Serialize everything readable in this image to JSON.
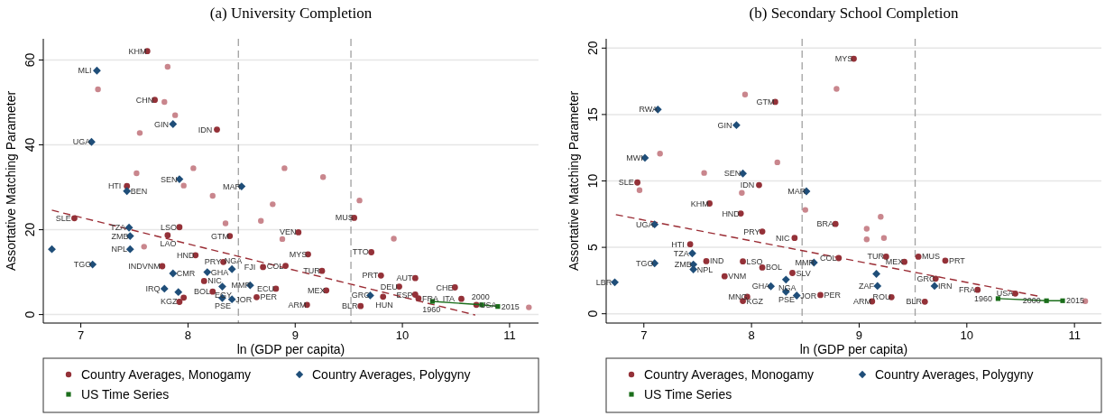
{
  "chart_data": [
    {
      "type": "scatter",
      "title": "(a) University Completion",
      "xlabel": "ln (GDP per capita)",
      "ylabel": "Assortative Matching Parameter",
      "xlim": [
        6.65,
        11.27
      ],
      "ylim": [
        -2,
        65
      ],
      "xticks": [
        7,
        8,
        9,
        10,
        11
      ],
      "yticks": [
        0,
        20,
        40,
        60
      ],
      "grid": "y",
      "legend": "bottom",
      "ref_lines": [
        {
          "axis": "x",
          "value": 8.47,
          "color": "#a0a0a0",
          "line_style": "dashed"
        },
        {
          "axis": "x",
          "value": 9.52,
          "color": "#a0a0a0",
          "line_style": "dashed"
        }
      ],
      "series": [
        {
          "type": "scatter",
          "color": "#c9868d",
          "marker": "circle",
          "x": [
            7.81,
            7.16,
            7.78,
            7.88,
            7.55,
            8.05,
            8.9,
            7.52,
            7.96,
            8.23,
            8.79,
            8.68,
            8.35,
            7.59,
            8.88,
            9.26,
            9.6,
            9.92,
            11.18
          ],
          "values": [
            58.4,
            53.1,
            50.1,
            47.0,
            42.8,
            34.5,
            34.5,
            33.3,
            30.4,
            28.0,
            26.0,
            22.1,
            21.5,
            16.0,
            17.8,
            32.4,
            26.9,
            17.9,
            1.7
          ]
        },
        {
          "type": "line",
          "color": "#9b2d35",
          "line_style": "dashed",
          "marker": "none",
          "x": [
            6.73,
            10.68
          ],
          "values": [
            24.6,
            -0.1
          ]
        },
        {
          "name": "Country Averages, Monogamy",
          "color": "#943138",
          "marker": "circle",
          "x": [
            7.62,
            7.69,
            8.27,
            7.43,
            6.94,
            7.92,
            7.81,
            8.39,
            9.03,
            8.07,
            9.12,
            8.33,
            7.76,
            8.91,
            8.7,
            8.15,
            8.23,
            8.82,
            8.64,
            7.92,
            7.96,
            9.11,
            9.55,
            9.71,
            9.8,
            10.12,
            9.97,
            10.49,
            10.12,
            10.15,
            9.82,
            9.61,
            10.55,
            10.69,
            9.29,
            9.25
          ],
          "values": [
            62.1,
            50.6,
            43.6,
            30.3,
            22.7,
            20.6,
            18.7,
            18.5,
            19.4,
            14.0,
            14.2,
            12.4,
            11.4,
            11.5,
            11.2,
            7.9,
            5.4,
            6.1,
            4.1,
            3.0,
            4.0,
            2.3,
            22.8,
            14.7,
            9.2,
            8.6,
            6.6,
            6.4,
            4.7,
            3.8,
            4.2,
            2.0,
            3.7,
            2.3,
            5.7,
            10.3
          ]
        },
        {
          "name": "Country Averages, Polygyny",
          "color": "#1f4e79",
          "marker": "diamond",
          "x": [
            7.15,
            7.86,
            7.1,
            7.92,
            7.43,
            8.5,
            7.45,
            7.46,
            7.46,
            6.73,
            7.11,
            7.86,
            8.18,
            8.41,
            8.58,
            7.78,
            7.91,
            8.32,
            8.41,
            8.32,
            9.7
          ],
          "values": [
            57.5,
            44.9,
            40.7,
            31.9,
            29.1,
            30.2,
            20.5,
            18.5,
            15.4,
            15.4,
            11.8,
            9.7,
            10.0,
            10.7,
            6.9,
            6.1,
            5.3,
            3.9,
            3.6,
            6.6,
            4.5
          ]
        },
        {
          "type": "line",
          "name": "US Time Series",
          "color": "#1b6e1b",
          "marker": "square",
          "x": [
            10.28,
            10.74,
            10.89
          ],
          "values": [
            3.1,
            2.3,
            1.9
          ]
        }
      ],
      "annotations": [
        {
          "text": "KHM",
          "x": 7.62,
          "y": 62.1
        },
        {
          "text": "MLI",
          "x": 7.15,
          "y": 57.5
        },
        {
          "text": "CHN",
          "x": 7.69,
          "y": 50.6
        },
        {
          "text": "GIN",
          "x": 7.86,
          "y": 44.9
        },
        {
          "text": "IDN",
          "x": 8.27,
          "y": 43.6
        },
        {
          "text": "UGA",
          "x": 7.1,
          "y": 40.7
        },
        {
          "text": "SEN",
          "x": 7.92,
          "y": 31.9
        },
        {
          "text": "HTI",
          "x": 7.43,
          "y": 30.3
        },
        {
          "text": "BEN",
          "x": 7.43,
          "y": 29.1
        },
        {
          "text": "MAR",
          "x": 8.5,
          "y": 30.2
        },
        {
          "text": "SLE",
          "x": 6.94,
          "y": 22.7
        },
        {
          "text": "TZA",
          "x": 7.45,
          "y": 20.5
        },
        {
          "text": "LSO",
          "x": 7.92,
          "y": 20.6
        },
        {
          "text": "ZMB",
          "x": 7.46,
          "y": 18.5
        },
        {
          "text": "LAO",
          "x": 7.81,
          "y": 18.7
        },
        {
          "text": "GTM",
          "x": 8.39,
          "y": 18.5
        },
        {
          "text": "VEN",
          "x": 9.03,
          "y": 19.4
        },
        {
          "text": "NPL",
          "x": 7.46,
          "y": 15.4
        },
        {
          "text": "HND",
          "x": 8.07,
          "y": 14.0
        },
        {
          "text": "MYS",
          "x": 9.12,
          "y": 14.2
        },
        {
          "text": "TGO",
          "x": 7.11,
          "y": 11.8
        },
        {
          "text": "PRY",
          "x": 8.33,
          "y": 12.4
        },
        {
          "text": "INDVNM",
          "x": 7.76,
          "y": 11.4
        },
        {
          "text": "FJI",
          "x": 8.7,
          "y": 11.2
        },
        {
          "text": "COL",
          "x": 8.91,
          "y": 11.5
        },
        {
          "text": "CMR",
          "x": 7.86,
          "y": 9.7
        },
        {
          "text": "GHA",
          "x": 8.18,
          "y": 10.0
        },
        {
          "text": "NGA",
          "x": 8.41,
          "y": 10.7
        },
        {
          "text": "NIC",
          "x": 8.15,
          "y": 7.9
        },
        {
          "text": "MMR",
          "x": 8.58,
          "y": 6.9
        },
        {
          "text": "EGY",
          "x": 8.32,
          "y": 6.6
        },
        {
          "text": "ECU",
          "x": 8.82,
          "y": 6.1
        },
        {
          "text": "IRQ",
          "x": 7.78,
          "y": 6.1
        },
        {
          "text": "BOL",
          "x": 8.23,
          "y": 5.4
        },
        {
          "text": "PSE",
          "x": 8.32,
          "y": 3.9
        },
        {
          "text": "JOR",
          "x": 8.41,
          "y": 3.6
        },
        {
          "text": "PER",
          "x": 8.64,
          "y": 4.1
        },
        {
          "text": "KGZ",
          "x": 7.92,
          "y": 3.0
        },
        {
          "text": "ARM",
          "x": 9.11,
          "y": 2.3
        },
        {
          "text": "MUS",
          "x": 9.55,
          "y": 22.8
        },
        {
          "text": "TTO",
          "x": 9.71,
          "y": 14.7
        },
        {
          "text": "TUR",
          "x": 9.25,
          "y": 10.3
        },
        {
          "text": "PRT",
          "x": 9.8,
          "y": 9.2
        },
        {
          "text": "AUT",
          "x": 10.12,
          "y": 8.6
        },
        {
          "text": "DEU",
          "x": 9.97,
          "y": 6.6
        },
        {
          "text": "CHE",
          "x": 10.49,
          "y": 6.4
        },
        {
          "text": "MEX",
          "x": 9.29,
          "y": 5.7
        },
        {
          "text": "ESP",
          "x": 10.12,
          "y": 4.7
        },
        {
          "text": "GRC",
          "x": 9.7,
          "y": 4.5
        },
        {
          "text": "HUN",
          "x": 9.82,
          "y": 4.2
        },
        {
          "text": "FRA",
          "x": 10.15,
          "y": 3.8
        },
        {
          "text": "ITA",
          "x": 10.55,
          "y": 3.7
        },
        {
          "text": "BLR",
          "x": 9.61,
          "y": 2.0
        },
        {
          "text": "USA",
          "x": 10.69,
          "y": 2.3
        },
        {
          "text": "1960",
          "x": 10.28,
          "y": 3.1
        },
        {
          "text": "2000",
          "x": 10.74,
          "y": 2.3
        },
        {
          "text": "2015",
          "x": 10.89,
          "y": 1.9
        }
      ]
    },
    {
      "type": "scatter",
      "title": "(b) Secondary School Completion",
      "xlabel": "ln (GDP per capita)",
      "ylabel": "Assortative Matching Parameter",
      "xlim": [
        6.65,
        11.25
      ],
      "ylim": [
        -0.7,
        20.7
      ],
      "xticks": [
        7,
        8,
        9,
        10,
        11
      ],
      "yticks": [
        0,
        5,
        10,
        15,
        20
      ],
      "grid": "y",
      "legend": "bottom",
      "ref_lines": [
        {
          "axis": "x",
          "value": 8.47,
          "color": "#a0a0a0",
          "line_style": "dashed"
        },
        {
          "axis": "x",
          "value": 9.52,
          "color": "#a0a0a0",
          "line_style": "dashed"
        }
      ],
      "series": [
        {
          "type": "scatter",
          "color": "#c9868d",
          "marker": "circle",
          "x": [
            7.94,
            7.15,
            8.24,
            7.56,
            6.96,
            7.91,
            8.79,
            8.5,
            9.2,
            9.07,
            9.07,
            9.23,
            11.1
          ],
          "values": [
            16.5,
            12.05,
            11.4,
            10.6,
            9.3,
            9.1,
            16.93,
            7.82,
            7.3,
            6.4,
            5.6,
            5.7,
            0.95
          ]
        },
        {
          "type": "line",
          "color": "#9b2d35",
          "line_style": "dashed",
          "marker": "none",
          "x": [
            6.74,
            10.68
          ],
          "values": [
            7.46,
            1.3
          ]
        },
        {
          "name": "Country Averages, Monogamy",
          "color": "#943138",
          "marker": "circle",
          "x": [
            8.95,
            8.22,
            6.94,
            8.07,
            7.61,
            7.9,
            8.78,
            8.1,
            8.4,
            7.43,
            7.92,
            8.1,
            8.81,
            8.38,
            8.64,
            7.96,
            7.92,
            7.75,
            7.58,
            9.25,
            9.42,
            9.55,
            9.8,
            9.71,
            9.3,
            9.12,
            9.61,
            10.1,
            10.45
          ],
          "values": [
            19.2,
            15.95,
            9.88,
            9.69,
            8.3,
            7.55,
            6.76,
            6.19,
            5.71,
            5.23,
            3.94,
            3.48,
            4.19,
            3.07,
            1.41,
            1.27,
            0.96,
            2.82,
            3.96,
            4.3,
            3.91,
            4.3,
            4.0,
            2.64,
            1.25,
            0.93,
            0.91,
            1.8,
            1.52
          ]
        },
        {
          "name": "Country Averages, Polygyny",
          "color": "#1f4e79",
          "marker": "diamond",
          "x": [
            7.13,
            7.86,
            7.01,
            7.92,
            8.51,
            7.1,
            7.45,
            7.1,
            7.46,
            7.46,
            6.73,
            8.18,
            8.32,
            8.42,
            8.32,
            8.58,
            9.16,
            9.17,
            9.7
          ],
          "values": [
            15.38,
            14.2,
            11.74,
            10.56,
            9.22,
            6.73,
            4.55,
            3.8,
            3.71,
            3.34,
            2.37,
            2.07,
            2.57,
            1.37,
            1.66,
            3.85,
            3.0,
            2.09,
            2.09
          ]
        },
        {
          "type": "line",
          "name": "US Time Series",
          "color": "#1b6e1b",
          "marker": "square",
          "x": [
            10.29,
            10.74,
            10.89
          ],
          "values": [
            1.14,
            0.98,
            0.98
          ]
        }
      ],
      "annotations": [
        {
          "text": "MYS",
          "x": 8.95,
          "y": 19.2
        },
        {
          "text": "GTM",
          "x": 8.22,
          "y": 15.95
        },
        {
          "text": "RWA",
          "x": 7.13,
          "y": 15.38
        },
        {
          "text": "GIN",
          "x": 7.86,
          "y": 14.2
        },
        {
          "text": "MWI",
          "x": 7.01,
          "y": 11.74
        },
        {
          "text": "SEN",
          "x": 7.92,
          "y": 10.56
        },
        {
          "text": "SLE",
          "x": 6.94,
          "y": 9.88
        },
        {
          "text": "IDN",
          "x": 8.07,
          "y": 9.69
        },
        {
          "text": "MAR",
          "x": 8.51,
          "y": 9.22
        },
        {
          "text": "KHM",
          "x": 7.61,
          "y": 8.3
        },
        {
          "text": "HND",
          "x": 7.9,
          "y": 7.55
        },
        {
          "text": "UGA",
          "x": 7.1,
          "y": 6.73
        },
        {
          "text": "BRA",
          "x": 8.78,
          "y": 6.76
        },
        {
          "text": "PRY",
          "x": 8.1,
          "y": 6.19
        },
        {
          "text": "NIC",
          "x": 8.4,
          "y": 5.71
        },
        {
          "text": "HTI",
          "x": 7.43,
          "y": 5.23
        },
        {
          "text": "TZA",
          "x": 7.45,
          "y": 4.55
        },
        {
          "text": "TGO",
          "x": 7.1,
          "y": 3.8
        },
        {
          "text": "ZMB",
          "x": 7.46,
          "y": 3.71
        },
        {
          "text": "NPL",
          "x": 7.46,
          "y": 3.34
        },
        {
          "text": "IND",
          "x": 7.58,
          "y": 3.96
        },
        {
          "text": "LSO",
          "x": 7.92,
          "y": 3.94
        },
        {
          "text": "BOL",
          "x": 8.1,
          "y": 3.48
        },
        {
          "text": "MMR",
          "x": 8.58,
          "y": 3.85
        },
        {
          "text": "COL",
          "x": 8.81,
          "y": 4.19
        },
        {
          "text": "SLV",
          "x": 8.38,
          "y": 3.07
        },
        {
          "text": "VNM",
          "x": 7.75,
          "y": 2.82
        },
        {
          "text": "LBR",
          "x": 6.73,
          "y": 2.37
        },
        {
          "text": "GHA",
          "x": 8.18,
          "y": 2.07
        },
        {
          "text": "NGA",
          "x": 8.32,
          "y": 2.57
        },
        {
          "text": "PSE",
          "x": 8.32,
          "y": 1.66
        },
        {
          "text": "JOR",
          "x": 8.42,
          "y": 1.37
        },
        {
          "text": "PER",
          "x": 8.64,
          "y": 1.41
        },
        {
          "text": "MNG",
          "x": 7.96,
          "y": 1.27
        },
        {
          "text": "KGZ",
          "x": 7.92,
          "y": 0.96
        },
        {
          "text": "TUR",
          "x": 9.25,
          "y": 4.3
        },
        {
          "text": "MEX",
          "x": 9.42,
          "y": 3.91
        },
        {
          "text": "MUS",
          "x": 9.55,
          "y": 4.3
        },
        {
          "text": "PRT",
          "x": 9.8,
          "y": 4.0
        },
        {
          "text": "GRC",
          "x": 9.71,
          "y": 2.64
        },
        {
          "text": "ZAF",
          "x": 9.17,
          "y": 2.09
        },
        {
          "text": "IRN",
          "x": 9.7,
          "y": 2.09
        },
        {
          "text": "ROU",
          "x": 9.3,
          "y": 1.25
        },
        {
          "text": "ARM",
          "x": 9.12,
          "y": 0.93
        },
        {
          "text": "BLR",
          "x": 9.61,
          "y": 0.91
        },
        {
          "text": "FRA",
          "x": 10.1,
          "y": 1.8
        },
        {
          "text": "USA",
          "x": 10.45,
          "y": 1.52
        },
        {
          "text": "1960",
          "x": 10.29,
          "y": 1.14
        },
        {
          "text": "2000",
          "x": 10.74,
          "y": 0.98
        },
        {
          "text": "2015",
          "x": 10.89,
          "y": 0.98
        }
      ]
    }
  ]
}
